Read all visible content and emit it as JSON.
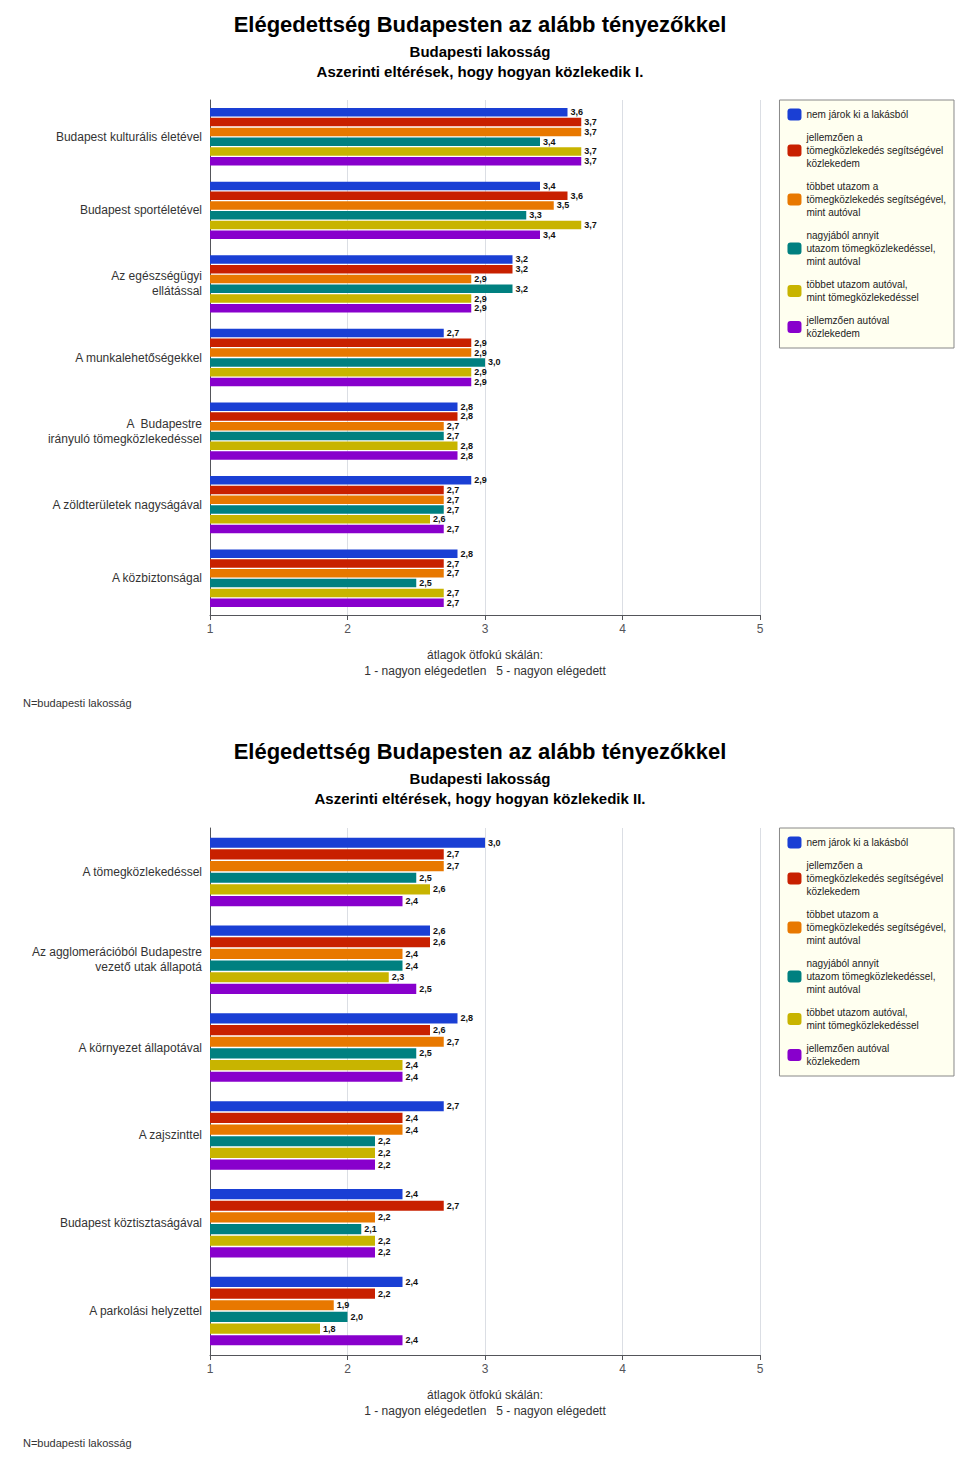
{
  "chart_data": [
    {
      "type": "bar",
      "orientation": "horizontal",
      "title": "Elégedettség Budapesten az alább tényezőkkel",
      "subtitle": [
        "Budapesti lakosság",
        "Aszerinti eltérések, hogy hogyan közlekedik I."
      ],
      "annotations": [
        "N=budapesti lakosság"
      ],
      "xlabel": "átlagok ötfokú skálán:\n1 - nagyon elégedetlen   5 - nagyon elégedett",
      "categories": [
        "Budapest kulturális életével",
        "Budapest sportéletével",
        "Az egészségügyi\nellátással",
        "A munkalehetőségekkel",
        "A  Budapestre\nirányuló tömegközlekedéssel",
        "A zöldterületek nagyságával",
        "A közbiztonságal"
      ],
      "series": [
        {
          "name": "nem járok ki a lakásból",
          "color": "#1a3fd4",
          "values": [
            3.6,
            3.4,
            3.2,
            2.7,
            2.8,
            2.9,
            2.8
          ],
          "value_labels": [
            "3,6",
            "3,4",
            "3,2",
            "2,7",
            "2,8",
            "2,9",
            "2,8"
          ]
        },
        {
          "name": "jellemzően a\ntömegközlekedés segítségével\nközlekedem",
          "color": "#c82000",
          "values": [
            3.7,
            3.6,
            3.2,
            2.9,
            2.8,
            2.7,
            2.7
          ],
          "value_labels": [
            "3,7",
            "3,6",
            "3,2",
            "2,9",
            "2,8",
            "2,7",
            "2,7"
          ]
        },
        {
          "name": "többet utazom a\ntömegközlekedés segítségével,\nmint autóval",
          "color": "#e87800",
          "values": [
            3.7,
            3.5,
            2.9,
            2.9,
            2.7,
            2.7,
            2.7
          ],
          "value_labels": [
            "3,7",
            "3,5",
            "2,9",
            "2,9",
            "2,7",
            "2,7",
            "2,7"
          ]
        },
        {
          "name": "nagyjából annyit\nutazom tömegközlekedéssel,\nmint autóval",
          "color": "#008080",
          "values": [
            3.4,
            3.3,
            3.2,
            3.0,
            2.7,
            2.7,
            2.5
          ],
          "value_labels": [
            "3,4",
            "3,3",
            "3,2",
            "3,0",
            "2,7",
            "2,7",
            "2,5"
          ]
        },
        {
          "name": "többet utazom autóval,\nmint tömegközlekedéssel",
          "color": "#c8b400",
          "values": [
            3.7,
            3.7,
            2.9,
            2.9,
            2.8,
            2.6,
            2.7
          ],
          "value_labels": [
            "3,7",
            "3,7",
            "2,9",
            "2,9",
            "2,8",
            "2,6",
            "2,7"
          ]
        },
        {
          "name": "jellemzően autóval\nközlekedem",
          "color": "#8800cc",
          "values": [
            3.7,
            3.4,
            2.9,
            2.9,
            2.8,
            2.7,
            2.7
          ],
          "value_labels": [
            "3,7",
            "3,4",
            "2,9",
            "2,9",
            "2,8",
            "2,7",
            "2,7"
          ]
        }
      ],
      "xlim": [
        1,
        5
      ],
      "xticks": [
        1,
        2,
        3,
        4,
        5
      ],
      "grid": true,
      "legend": "upper right",
      "data_labels": true
    },
    {
      "type": "bar",
      "orientation": "horizontal",
      "title": "Elégedettség Budapesten az alább tényezőkkel",
      "subtitle": [
        "Budapesti lakosság",
        "Aszerinti eltérések, hogy hogyan közlekedik II."
      ],
      "annotations": [
        "N=budapesti lakosság"
      ],
      "xlabel": "átlagok ötfokú skálán:\n1 - nagyon elégedetlen   5 - nagyon elégedett",
      "categories": [
        "A tömegközlekedéssel",
        "Az agglomerációból Budapestre\nvezető utak állapotá",
        "A környezet állapotával",
        "A zajszinttel",
        "Budapest köztisztaságával",
        "A parkolási helyzettel"
      ],
      "series": [
        {
          "name": "nem járok ki a lakásból",
          "color": "#1a3fd4",
          "values": [
            3.0,
            2.6,
            2.8,
            2.7,
            2.4,
            2.4
          ],
          "value_labels": [
            "3,0",
            "2,6",
            "2,8",
            "2,7",
            "2,4",
            "2,4"
          ]
        },
        {
          "name": "jellemzően a\ntömegközlekedés segítségével\nközlekedem",
          "color": "#c82000",
          "values": [
            2.7,
            2.6,
            2.6,
            2.4,
            2.7,
            2.2
          ],
          "value_labels": [
            "2,7",
            "2,6",
            "2,6",
            "2,4",
            "2,7",
            "2,2"
          ]
        },
        {
          "name": "többet utazom a\ntömegközlekedés segítségével,\nmint autóval",
          "color": "#e87800",
          "values": [
            2.7,
            2.4,
            2.7,
            2.4,
            2.2,
            1.9
          ],
          "value_labels": [
            "2,7",
            "2,4",
            "2,7",
            "2,4",
            "2,2",
            "1,9"
          ]
        },
        {
          "name": "nagyjából annyit\nutazom tömegközlekedéssel,\nmint autóval",
          "color": "#008080",
          "values": [
            2.5,
            2.4,
            2.5,
            2.2,
            2.1,
            2.0
          ],
          "value_labels": [
            "2,5",
            "2,4",
            "2,5",
            "2,2",
            "2,1",
            "2,0"
          ]
        },
        {
          "name": "többet utazom autóval,\nmint tömegközlekedéssel",
          "color": "#c8b400",
          "values": [
            2.6,
            2.3,
            2.4,
            2.2,
            2.2,
            1.8
          ],
          "value_labels": [
            "2,6",
            "2,3",
            "2,4",
            "2,2",
            "2,2",
            "1,8"
          ]
        },
        {
          "name": "jellemzően autóval\nközlekedem",
          "color": "#8800cc",
          "values": [
            2.4,
            2.5,
            2.4,
            2.2,
            2.2,
            2.4
          ],
          "value_labels": [
            "2,4",
            "2,5",
            "2,4",
            "2,2",
            "2,2",
            "2,4"
          ]
        }
      ],
      "xlim": [
        1,
        5
      ],
      "xticks": [
        1,
        2,
        3,
        4,
        5
      ],
      "grid": true,
      "legend": "upper right",
      "data_labels": true
    }
  ]
}
